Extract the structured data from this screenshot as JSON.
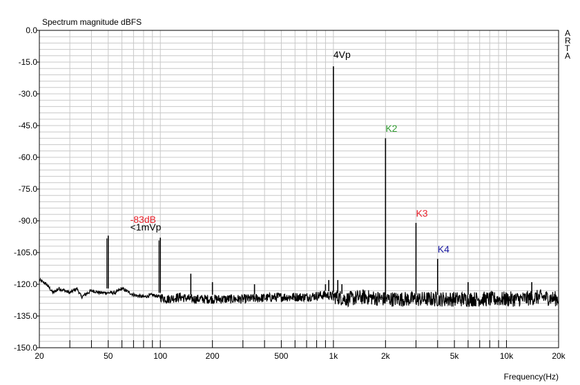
{
  "chart_data": {
    "type": "line",
    "title": "Spectrum magnitude dBFS",
    "xlabel": "Frequency(Hz)",
    "ylabel": "",
    "watermark": "ARTA",
    "x_scale": "log",
    "xlim": [
      20,
      20000
    ],
    "ylim": [
      -150,
      0
    ],
    "grid": true,
    "ytick_labels": [
      "0.0",
      "-15.0",
      "-30.0",
      "-45.0",
      "-60.0",
      "-75.0",
      "-90.0",
      "-105.0",
      "-120.0",
      "-135.0",
      "-150.0"
    ],
    "ytick_values": [
      0,
      -15,
      -30,
      -45,
      -60,
      -75,
      -90,
      -105,
      -120,
      -135,
      -150
    ],
    "xtick_labels": [
      "20",
      "50",
      "100",
      "200",
      "500",
      "1k",
      "2k",
      "5k",
      "10k",
      "20k"
    ],
    "xtick_values": [
      20,
      50,
      100,
      200,
      500,
      1000,
      2000,
      5000,
      10000,
      20000
    ],
    "noise_floor": [
      [
        20,
        -118
      ],
      [
        22,
        -120
      ],
      [
        24,
        -124
      ],
      [
        26,
        -122
      ],
      [
        28,
        -123
      ],
      [
        30,
        -124
      ],
      [
        33,
        -122
      ],
      [
        35,
        -126
      ],
      [
        40,
        -123
      ],
      [
        45,
        -124
      ],
      [
        55,
        -124
      ],
      [
        60,
        -122
      ],
      [
        70,
        -125
      ],
      [
        80,
        -126
      ],
      [
        90,
        -125
      ],
      [
        110,
        -127
      ],
      [
        130,
        -126
      ],
      [
        150,
        -127
      ],
      [
        200,
        -127
      ],
      [
        300,
        -127
      ],
      [
        500,
        -126
      ],
      [
        700,
        -126
      ],
      [
        900,
        -125
      ],
      [
        1200,
        -127
      ],
      [
        1500,
        -126
      ],
      [
        2000,
        -127
      ],
      [
        3000,
        -127
      ],
      [
        5000,
        -127
      ],
      [
        8000,
        -127
      ],
      [
        12000,
        -127
      ],
      [
        16000,
        -126
      ],
      [
        20000,
        -127
      ]
    ],
    "peaks": [
      {
        "freq": 50,
        "level": -97
      },
      {
        "freq": 100,
        "level": -98
      },
      {
        "freq": 150,
        "level": -115
      },
      {
        "freq": 200,
        "level": -119
      },
      {
        "freq": 350,
        "level": -120
      },
      {
        "freq": 900,
        "level": -120
      },
      {
        "freq": 940,
        "level": -118
      },
      {
        "freq": 1000,
        "level": -17
      },
      {
        "freq": 1060,
        "level": -118
      },
      {
        "freq": 1120,
        "level": -120
      },
      {
        "freq": 2000,
        "level": -51
      },
      {
        "freq": 3000,
        "level": -91
      },
      {
        "freq": 4000,
        "level": -108
      },
      {
        "freq": 6000,
        "level": -119
      },
      {
        "freq": 14000,
        "level": -119
      }
    ],
    "annotations": [
      {
        "text": "4Vp",
        "freq": 1000,
        "level": -13,
        "color": "#000000"
      },
      {
        "text": "K2",
        "freq": 2000,
        "level": -48,
        "color": "#2e9a2e"
      },
      {
        "text": "K3",
        "freq": 3000,
        "level": -88,
        "color": "#e8202a"
      },
      {
        "text": "K4",
        "freq": 4000,
        "level": -105,
        "color": "#1a1aa0"
      },
      {
        "text": "-83dB",
        "freq": 67,
        "level": -91,
        "color": "#e8202a"
      },
      {
        "text": "<1mVp",
        "freq": 67,
        "level": -94.5,
        "color": "#000000"
      }
    ],
    "colors": {
      "axis_background": "#ffffff",
      "grid": "#c8c8c8",
      "trace": "#000000",
      "frame": "#000000"
    }
  }
}
